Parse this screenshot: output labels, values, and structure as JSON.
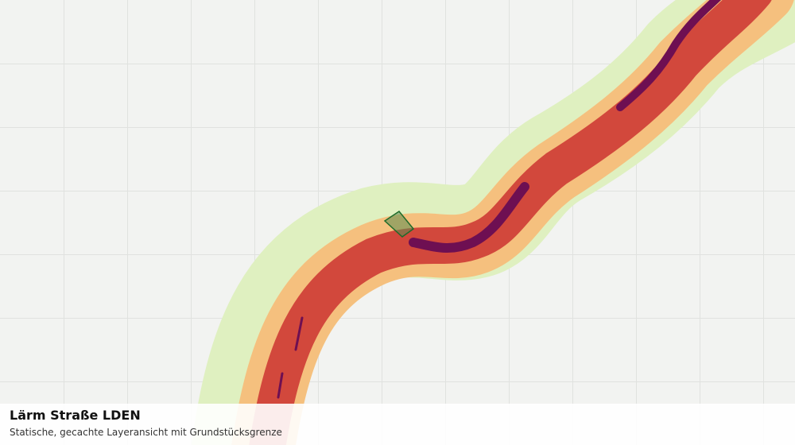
{
  "map": {
    "title": "Lärm Straße LDEN",
    "subtitle": "Statische, gecachte Layeransicht mit Grundstücksgrenze"
  }
}
